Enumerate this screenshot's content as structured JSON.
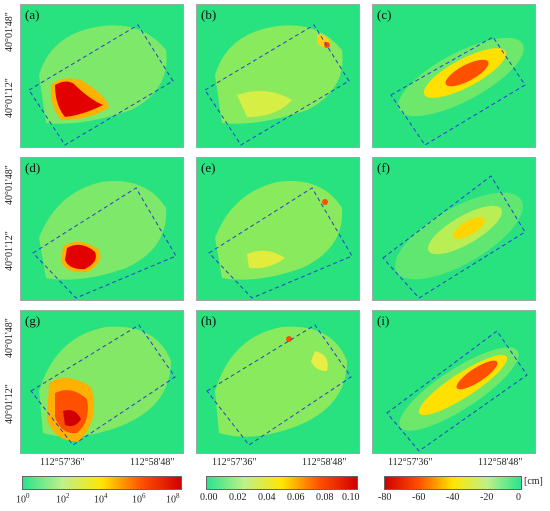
{
  "panels": [
    "(a)",
    "(b)",
    "(c)",
    "(d)",
    "(e)",
    "(f)",
    "(g)",
    "(h)",
    "(i)"
  ],
  "lat_labels": {
    "top": "40°01'48\"",
    "mid": "40°01'12\""
  },
  "lon_labels": {
    "left": "112°57'36\"",
    "right": "112°58'48\""
  },
  "colorbars": [
    {
      "kind": "log",
      "ticks_base": [
        "10",
        "10",
        "10",
        "10",
        "10"
      ],
      "ticks_exp": [
        "0",
        "2",
        "4",
        "6",
        "8"
      ],
      "colors": [
        "#2be48c",
        "#bff08a",
        "#ffe600",
        "#ff5000",
        "#d10000"
      ]
    },
    {
      "kind": "linear",
      "ticks": [
        "0.00",
        "0.02",
        "0.04",
        "0.06",
        "0.08",
        "0.10"
      ],
      "colors": [
        "#2be48c",
        "#bff08a",
        "#ffe600",
        "#ff5000",
        "#d10000"
      ]
    },
    {
      "kind": "linear",
      "ticks": [
        "-80",
        "-60",
        "-40",
        "-20",
        "0"
      ],
      "unit": "[cm]",
      "colors": [
        "#d10000",
        "#ff5000",
        "#ffe600",
        "#bff08a",
        "#2be48c"
      ]
    }
  ]
}
